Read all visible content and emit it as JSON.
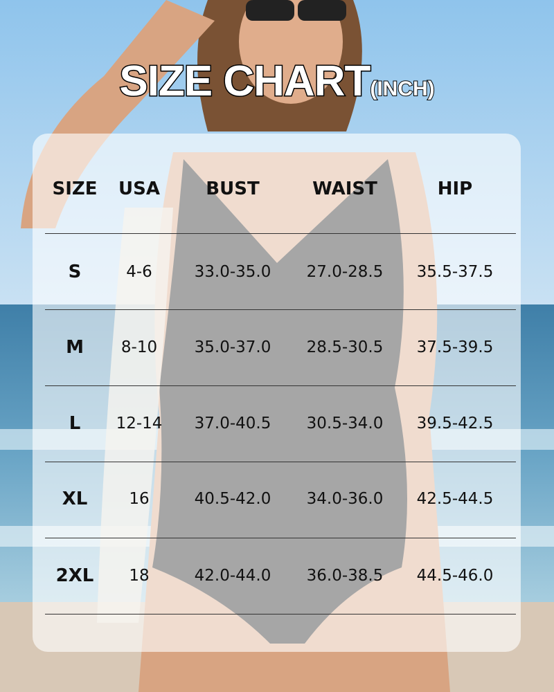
{
  "title": {
    "main": "SIZE CHART",
    "unit": "(INCH)"
  },
  "chart_data": {
    "type": "table",
    "title": "SIZE CHART (INCH)",
    "columns": [
      "SIZE",
      "USA",
      "BUST",
      "WAIST",
      "HIP"
    ],
    "rows": [
      [
        "S",
        "4-6",
        "33.0-35.0",
        "27.0-28.5",
        "35.5-37.5"
      ],
      [
        "M",
        "8-10",
        "35.0-37.0",
        "28.5-30.5",
        "37.5-39.5"
      ],
      [
        "L",
        "12-14",
        "37.0-40.5",
        "30.5-34.0",
        "39.5-42.5"
      ],
      [
        "XL",
        "16",
        "40.5-42.0",
        "34.0-36.0",
        "42.5-44.5"
      ],
      [
        "2XL",
        "18",
        "42.0-44.0",
        "36.0-38.5",
        "44.5-46.0"
      ]
    ]
  }
}
